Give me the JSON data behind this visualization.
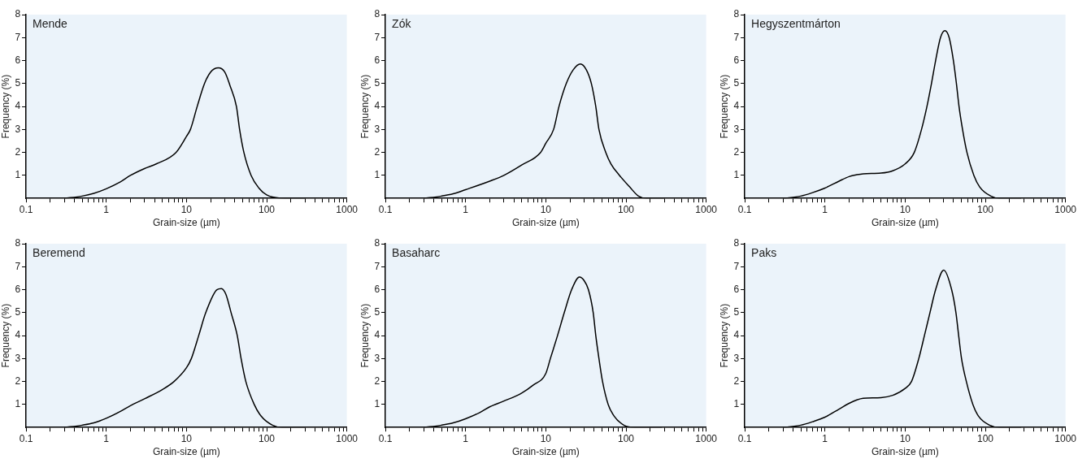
{
  "chart_data": [
    {
      "type": "line",
      "title": "Mende",
      "xlabel": "Grain-size (µm)",
      "ylabel": "Frequency (%)",
      "log": "x",
      "grid": false,
      "color": "#000000",
      "x": [
        0.3,
        0.5,
        0.7,
        1,
        1.5,
        2,
        3,
        4.2,
        7.4,
        10,
        11.2,
        13.6,
        16.8,
        20,
        25,
        30,
        35,
        42,
        46,
        52,
        64,
        80,
        100,
        150,
        200,
        300
      ],
      "values": [
        0,
        0.1,
        0.22,
        0.42,
        0.72,
        1.0,
        1.3,
        1.5,
        2.0,
        2.7,
        3,
        4,
        5,
        5.5,
        5.68,
        5.5,
        4.9,
        4,
        3,
        2,
        1,
        0.45,
        0.15,
        0.01,
        0,
        0
      ],
      "xlim": [
        0.1,
        1000
      ],
      "xticks": [
        0.1,
        {
          "value": 0.2,
          "label": null
        },
        {
          "value": 0.3,
          "label": null
        },
        {
          "value": 0.4,
          "label": null
        },
        {
          "value": 0.5,
          "label": null
        },
        {
          "value": 0.6,
          "label": null
        },
        {
          "value": 0.7,
          "label": null
        },
        {
          "value": 0.8,
          "label": null
        },
        {
          "value": 0.9,
          "label": null
        },
        1,
        {
          "value": 2,
          "label": null
        },
        {
          "value": 3,
          "label": null
        },
        {
          "value": 4,
          "label": null
        },
        {
          "value": 5,
          "label": null
        },
        {
          "value": 6,
          "label": null
        },
        {
          "value": 7,
          "label": null
        },
        {
          "value": 8,
          "label": null
        },
        {
          "value": 9,
          "label": null
        },
        10,
        {
          "value": 20,
          "label": null
        },
        {
          "value": 30,
          "label": null
        },
        {
          "value": 40,
          "label": null
        },
        {
          "value": 50,
          "label": null
        },
        {
          "value": 60,
          "label": null
        },
        {
          "value": 70,
          "label": null
        },
        {
          "value": 80,
          "label": null
        },
        {
          "value": 90,
          "label": null
        },
        100,
        {
          "value": 200,
          "label": null
        },
        {
          "value": 300,
          "label": null
        },
        {
          "value": 400,
          "label": null
        },
        {
          "value": 500,
          "label": null
        },
        {
          "value": 600,
          "label": null
        },
        {
          "value": 700,
          "label": null
        },
        {
          "value": 800,
          "label": null
        },
        {
          "value": 900,
          "label": null
        },
        1000
      ],
      "ylim": [
        0,
        8
      ],
      "yticks": [
        1,
        2,
        3,
        4,
        5,
        6,
        7,
        8
      ]
    },
    {
      "type": "line",
      "title": "Zók",
      "xlabel": "Grain-size (µm)",
      "ylabel": "Frequency (%)",
      "log": "x",
      "grid": false,
      "color": "#000000",
      "x": [
        0.3,
        0.5,
        0.7,
        1,
        2,
        3,
        5,
        8.6,
        10,
        12.5,
        14.6,
        18,
        22,
        27,
        32,
        37,
        42,
        46,
        56,
        65,
        83,
        111,
        143,
        180,
        300
      ],
      "values": [
        0,
        0.1,
        0.2,
        0.38,
        0.75,
        1.0,
        1.45,
        2,
        2.4,
        3,
        4,
        5,
        5.6,
        5.85,
        5.6,
        5,
        4,
        3,
        2,
        1.5,
        1,
        0.5,
        0.1,
        0,
        0
      ],
      "xlim": [
        0.1,
        1000
      ],
      "xticks": [
        0.1,
        {
          "value": 0.2,
          "label": null
        },
        {
          "value": 0.3,
          "label": null
        },
        {
          "value": 0.4,
          "label": null
        },
        {
          "value": 0.5,
          "label": null
        },
        {
          "value": 0.6,
          "label": null
        },
        {
          "value": 0.7,
          "label": null
        },
        {
          "value": 0.8,
          "label": null
        },
        {
          "value": 0.9,
          "label": null
        },
        1,
        {
          "value": 2,
          "label": null
        },
        {
          "value": 3,
          "label": null
        },
        {
          "value": 4,
          "label": null
        },
        {
          "value": 5,
          "label": null
        },
        {
          "value": 6,
          "label": null
        },
        {
          "value": 7,
          "label": null
        },
        {
          "value": 8,
          "label": null
        },
        {
          "value": 9,
          "label": null
        },
        10,
        {
          "value": 20,
          "label": null
        },
        {
          "value": 30,
          "label": null
        },
        {
          "value": 40,
          "label": null
        },
        {
          "value": 50,
          "label": null
        },
        {
          "value": 60,
          "label": null
        },
        {
          "value": 70,
          "label": null
        },
        {
          "value": 80,
          "label": null
        },
        {
          "value": 90,
          "label": null
        },
        100,
        {
          "value": 200,
          "label": null
        },
        {
          "value": 300,
          "label": null
        },
        {
          "value": 400,
          "label": null
        },
        {
          "value": 500,
          "label": null
        },
        {
          "value": 600,
          "label": null
        },
        {
          "value": 700,
          "label": null
        },
        {
          "value": 800,
          "label": null
        },
        {
          "value": 900,
          "label": null
        },
        1000
      ],
      "ylim": [
        0,
        8
      ],
      "yticks": [
        1,
        2,
        3,
        4,
        5,
        6,
        7,
        8
      ]
    },
    {
      "type": "line",
      "title": "Hegyszentmárton",
      "xlabel": "Grain-size (µm)",
      "ylabel": "Frequency (%)",
      "log": "x",
      "grid": false,
      "color": "#000000",
      "x": [
        0.3,
        0.5,
        0.7,
        1,
        1.5,
        2,
        2.5,
        3,
        5,
        7,
        10,
        13,
        16,
        18.7,
        21.3,
        24,
        27.6,
        31.3,
        35.4,
        40,
        43.6,
        47,
        52,
        59,
        72,
        85,
        117,
        150,
        280
      ],
      "values": [
        0,
        0.1,
        0.25,
        0.45,
        0.75,
        0.95,
        1.03,
        1.07,
        1.1,
        1.2,
        1.5,
        2,
        3,
        4,
        5,
        6,
        7,
        7.3,
        7,
        6,
        5,
        4,
        3,
        2,
        1,
        0.5,
        0.1,
        0,
        0
      ],
      "xlim": [
        0.1,
        1000
      ],
      "xticks": [
        0.1,
        {
          "value": 0.2,
          "label": null
        },
        {
          "value": 0.3,
          "label": null
        },
        {
          "value": 0.4,
          "label": null
        },
        {
          "value": 0.5,
          "label": null
        },
        {
          "value": 0.6,
          "label": null
        },
        {
          "value": 0.7,
          "label": null
        },
        {
          "value": 0.8,
          "label": null
        },
        {
          "value": 0.9,
          "label": null
        },
        1,
        {
          "value": 2,
          "label": null
        },
        {
          "value": 3,
          "label": null
        },
        {
          "value": 4,
          "label": null
        },
        {
          "value": 5,
          "label": null
        },
        {
          "value": 6,
          "label": null
        },
        {
          "value": 7,
          "label": null
        },
        {
          "value": 8,
          "label": null
        },
        {
          "value": 9,
          "label": null
        },
        10,
        {
          "value": 20,
          "label": null
        },
        {
          "value": 30,
          "label": null
        },
        {
          "value": 40,
          "label": null
        },
        {
          "value": 50,
          "label": null
        },
        {
          "value": 60,
          "label": null
        },
        {
          "value": 70,
          "label": null
        },
        {
          "value": 80,
          "label": null
        },
        {
          "value": 90,
          "label": null
        },
        100,
        {
          "value": 200,
          "label": null
        },
        {
          "value": 300,
          "label": null
        },
        {
          "value": 400,
          "label": null
        },
        {
          "value": 500,
          "label": null
        },
        {
          "value": 600,
          "label": null
        },
        {
          "value": 700,
          "label": null
        },
        {
          "value": 800,
          "label": null
        },
        {
          "value": 900,
          "label": null
        },
        1000
      ],
      "ylim": [
        0,
        8
      ],
      "yticks": [
        1,
        2,
        3,
        4,
        5,
        6,
        7,
        8
      ]
    },
    {
      "type": "line",
      "title": "Beremend",
      "xlabel": "Grain-size (µm)",
      "ylabel": "Frequency (%)",
      "log": "x",
      "grid": false,
      "color": "#000000",
      "x": [
        0.3,
        0.5,
        0.7,
        1,
        1.5,
        2,
        3,
        5,
        7,
        10,
        11.5,
        14.2,
        17.4,
        24,
        27.3,
        31,
        36,
        43,
        48,
        55,
        70,
        85,
        118,
        155,
        300
      ],
      "values": [
        0,
        0.1,
        0.2,
        0.4,
        0.7,
        0.95,
        1.25,
        1.65,
        2.0,
        2.6,
        3,
        4,
        5,
        6,
        6.05,
        5.8,
        5,
        4,
        3,
        2,
        1,
        0.5,
        0.1,
        0,
        0
      ],
      "xlim": [
        0.1,
        1000
      ],
      "xticks": [
        0.1,
        {
          "value": 0.2,
          "label": null
        },
        {
          "value": 0.3,
          "label": null
        },
        {
          "value": 0.4,
          "label": null
        },
        {
          "value": 0.5,
          "label": null
        },
        {
          "value": 0.6,
          "label": null
        },
        {
          "value": 0.7,
          "label": null
        },
        {
          "value": 0.8,
          "label": null
        },
        {
          "value": 0.9,
          "label": null
        },
        1,
        {
          "value": 2,
          "label": null
        },
        {
          "value": 3,
          "label": null
        },
        {
          "value": 4,
          "label": null
        },
        {
          "value": 5,
          "label": null
        },
        {
          "value": 6,
          "label": null
        },
        {
          "value": 7,
          "label": null
        },
        {
          "value": 8,
          "label": null
        },
        {
          "value": 9,
          "label": null
        },
        10,
        {
          "value": 20,
          "label": null
        },
        {
          "value": 30,
          "label": null
        },
        {
          "value": 40,
          "label": null
        },
        {
          "value": 50,
          "label": null
        },
        {
          "value": 60,
          "label": null
        },
        {
          "value": 70,
          "label": null
        },
        {
          "value": 80,
          "label": null
        },
        {
          "value": 90,
          "label": null
        },
        100,
        {
          "value": 200,
          "label": null
        },
        {
          "value": 300,
          "label": null
        },
        {
          "value": 400,
          "label": null
        },
        {
          "value": 500,
          "label": null
        },
        {
          "value": 600,
          "label": null
        },
        {
          "value": 700,
          "label": null
        },
        {
          "value": 800,
          "label": null
        },
        {
          "value": 900,
          "label": null
        },
        1000
      ],
      "ylim": [
        0,
        8
      ],
      "yticks": [
        1,
        2,
        3,
        4,
        5,
        6,
        7,
        8
      ]
    },
    {
      "type": "line",
      "title": "Basaharc",
      "xlabel": "Grain-size (µm)",
      "ylabel": "Frequency (%)",
      "log": "x",
      "grid": false,
      "color": "#000000",
      "x": [
        0.3,
        0.5,
        0.7,
        1,
        1.5,
        2,
        3,
        5,
        7,
        10,
        11.4,
        14,
        17,
        21,
        26.3,
        30,
        34,
        39,
        42,
        46,
        51,
        60,
        71,
        94,
        130,
        280
      ],
      "values": [
        0,
        0.1,
        0.2,
        0.38,
        0.65,
        0.9,
        1.15,
        1.5,
        1.85,
        2.35,
        3,
        4,
        5,
        6,
        6.55,
        6.4,
        6,
        5,
        4,
        3,
        2,
        1,
        0.5,
        0.1,
        0,
        0
      ],
      "xlim": [
        0.1,
        1000
      ],
      "xticks": [
        0.1,
        {
          "value": 0.2,
          "label": null
        },
        {
          "value": 0.3,
          "label": null
        },
        {
          "value": 0.4,
          "label": null
        },
        {
          "value": 0.5,
          "label": null
        },
        {
          "value": 0.6,
          "label": null
        },
        {
          "value": 0.7,
          "label": null
        },
        {
          "value": 0.8,
          "label": null
        },
        {
          "value": 0.9,
          "label": null
        },
        1,
        {
          "value": 2,
          "label": null
        },
        {
          "value": 3,
          "label": null
        },
        {
          "value": 4,
          "label": null
        },
        {
          "value": 5,
          "label": null
        },
        {
          "value": 6,
          "label": null
        },
        {
          "value": 7,
          "label": null
        },
        {
          "value": 8,
          "label": null
        },
        {
          "value": 9,
          "label": null
        },
        10,
        {
          "value": 20,
          "label": null
        },
        {
          "value": 30,
          "label": null
        },
        {
          "value": 40,
          "label": null
        },
        {
          "value": 50,
          "label": null
        },
        {
          "value": 60,
          "label": null
        },
        {
          "value": 70,
          "label": null
        },
        {
          "value": 80,
          "label": null
        },
        {
          "value": 90,
          "label": null
        },
        100,
        {
          "value": 200,
          "label": null
        },
        {
          "value": 300,
          "label": null
        },
        {
          "value": 400,
          "label": null
        },
        {
          "value": 500,
          "label": null
        },
        {
          "value": 600,
          "label": null
        },
        {
          "value": 700,
          "label": null
        },
        {
          "value": 800,
          "label": null
        },
        {
          "value": 900,
          "label": null
        },
        1000
      ],
      "ylim": [
        0,
        8
      ],
      "yticks": [
        1,
        2,
        3,
        4,
        5,
        6,
        7,
        8
      ]
    },
    {
      "type": "line",
      "title": "Paks",
      "xlabel": "Grain-size (µm)",
      "ylabel": "Frequency (%)",
      "log": "x",
      "grid": false,
      "color": "#000000",
      "x": [
        0.3,
        0.5,
        0.7,
        1,
        1.5,
        2,
        2.5,
        3,
        5,
        7,
        10,
        12,
        14.8,
        17.4,
        20.4,
        24,
        30.3,
        38,
        43,
        46.5,
        50.5,
        58,
        70,
        82,
        113,
        150,
        280
      ],
      "values": [
        0,
        0.1,
        0.25,
        0.45,
        0.8,
        1.05,
        1.2,
        1.27,
        1.3,
        1.4,
        1.7,
        2,
        3,
        4,
        5,
        6,
        6.85,
        6,
        5,
        4,
        3,
        2,
        1,
        0.5,
        0.1,
        0,
        0
      ],
      "xlim": [
        0.1,
        1000
      ],
      "xticks": [
        0.1,
        {
          "value": 0.2,
          "label": null
        },
        {
          "value": 0.3,
          "label": null
        },
        {
          "value": 0.4,
          "label": null
        },
        {
          "value": 0.5,
          "label": null
        },
        {
          "value": 0.6,
          "label": null
        },
        {
          "value": 0.7,
          "label": null
        },
        {
          "value": 0.8,
          "label": null
        },
        {
          "value": 0.9,
          "label": null
        },
        1,
        {
          "value": 2,
          "label": null
        },
        {
          "value": 3,
          "label": null
        },
        {
          "value": 4,
          "label": null
        },
        {
          "value": 5,
          "label": null
        },
        {
          "value": 6,
          "label": null
        },
        {
          "value": 7,
          "label": null
        },
        {
          "value": 8,
          "label": null
        },
        {
          "value": 9,
          "label": null
        },
        10,
        {
          "value": 20,
          "label": null
        },
        {
          "value": 30,
          "label": null
        },
        {
          "value": 40,
          "label": null
        },
        {
          "value": 50,
          "label": null
        },
        {
          "value": 60,
          "label": null
        },
        {
          "value": 70,
          "label": null
        },
        {
          "value": 80,
          "label": null
        },
        {
          "value": 90,
          "label": null
        },
        100,
        {
          "value": 200,
          "label": null
        },
        {
          "value": 300,
          "label": null
        },
        {
          "value": 400,
          "label": null
        },
        {
          "value": 500,
          "label": null
        },
        {
          "value": 600,
          "label": null
        },
        {
          "value": 700,
          "label": null
        },
        {
          "value": 800,
          "label": null
        },
        {
          "value": 900,
          "label": null
        },
        1000
      ],
      "ylim": [
        0,
        8
      ],
      "yticks": [
        1,
        2,
        3,
        4,
        5,
        6,
        7,
        8
      ]
    }
  ]
}
